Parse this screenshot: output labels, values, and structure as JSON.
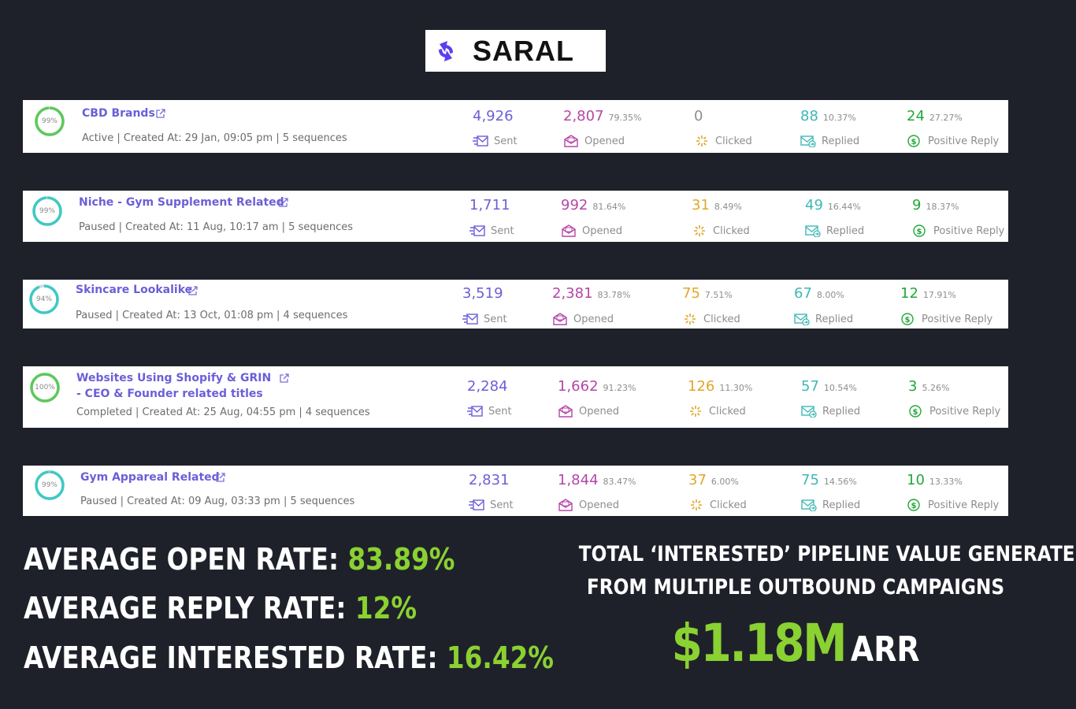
{
  "brand": {
    "name": "SARAL"
  },
  "labels": {
    "sent": "Sent",
    "opened": "Opened",
    "clicked": "Clicked",
    "replied": "Replied",
    "positive": "Positive Reply"
  },
  "campaigns": [
    {
      "progress": "99%",
      "progress_value": 0.99,
      "title": "CBD Brands",
      "meta": "Active | Created At: 29 Jan, 09:05 pm | 5 sequences",
      "sent": "4,926",
      "opened": "2,807",
      "opened_pct": "79.35%",
      "clicked": "0",
      "clicked_pct": "",
      "replied": "88",
      "replied_pct": "10.37%",
      "positive": "24",
      "positive_pct": "27.27%"
    },
    {
      "progress": "99%",
      "progress_value": 0.99,
      "title": "Niche - Gym Supplement Related",
      "meta": "Paused | Created At: 11 Aug, 10:17 am | 5 sequences",
      "sent": "1,711",
      "opened": "992",
      "opened_pct": "81.64%",
      "clicked": "31",
      "clicked_pct": "8.49%",
      "replied": "49",
      "replied_pct": "16.44%",
      "positive": "9",
      "positive_pct": "18.37%"
    },
    {
      "progress": "94%",
      "progress_value": 0.94,
      "title": "Skincare Lookalike",
      "meta": "Paused | Created At: 13 Oct, 01:08 pm | 4 sequences",
      "sent": "3,519",
      "opened": "2,381",
      "opened_pct": "83.78%",
      "clicked": "75",
      "clicked_pct": "7.51%",
      "replied": "67",
      "replied_pct": "8.00%",
      "positive": "12",
      "positive_pct": "17.91%"
    },
    {
      "progress": "100%",
      "progress_value": 1.0,
      "title": "Websites Using Shopify & GRIN - CEO & Founder related titles",
      "meta": "Completed | Created At: 25 Aug, 04:55 pm | 4 sequences",
      "sent": "2,284",
      "opened": "1,662",
      "opened_pct": "91.23%",
      "clicked": "126",
      "clicked_pct": "11.30%",
      "replied": "57",
      "replied_pct": "10.54%",
      "positive": "3",
      "positive_pct": "5.26%"
    },
    {
      "progress": "99%",
      "progress_value": 0.99,
      "title": "Gym Appareal Related",
      "meta": "Paused | Created At: 09 Aug, 03:33 pm | 5 sequences",
      "sent": "2,831",
      "opened": "1,844",
      "opened_pct": "83.47%",
      "clicked": "37",
      "clicked_pct": "6.00%",
      "replied": "75",
      "replied_pct": "14.56%",
      "positive": "10",
      "positive_pct": "13.33%"
    }
  ],
  "averages": {
    "open_label": "AVERAGE OPEN RATE:",
    "open_value": "83.89%",
    "reply_label": "AVERAGE REPLY RATE:",
    "reply_value": "12%",
    "interested_label": "AVERAGE INTERESTED RATE:",
    "interested_value": "16.42%"
  },
  "pipeline": {
    "line1": "TOTAL ‘INTERESTED’ PIPELINE VALUE GENERATED",
    "line2": "FROM MULTIPLE OUTBOUND CAMPAIGNS",
    "value": "$1.18M",
    "unit": "ARR"
  },
  "colors": {
    "background": "#1f212a",
    "accent_green": "#8ad132",
    "sent": "#6b5fd8",
    "opened": "#b546a8",
    "clicked": "#e0a72a",
    "replied": "#3fb8b6",
    "positive": "#22a83a"
  }
}
